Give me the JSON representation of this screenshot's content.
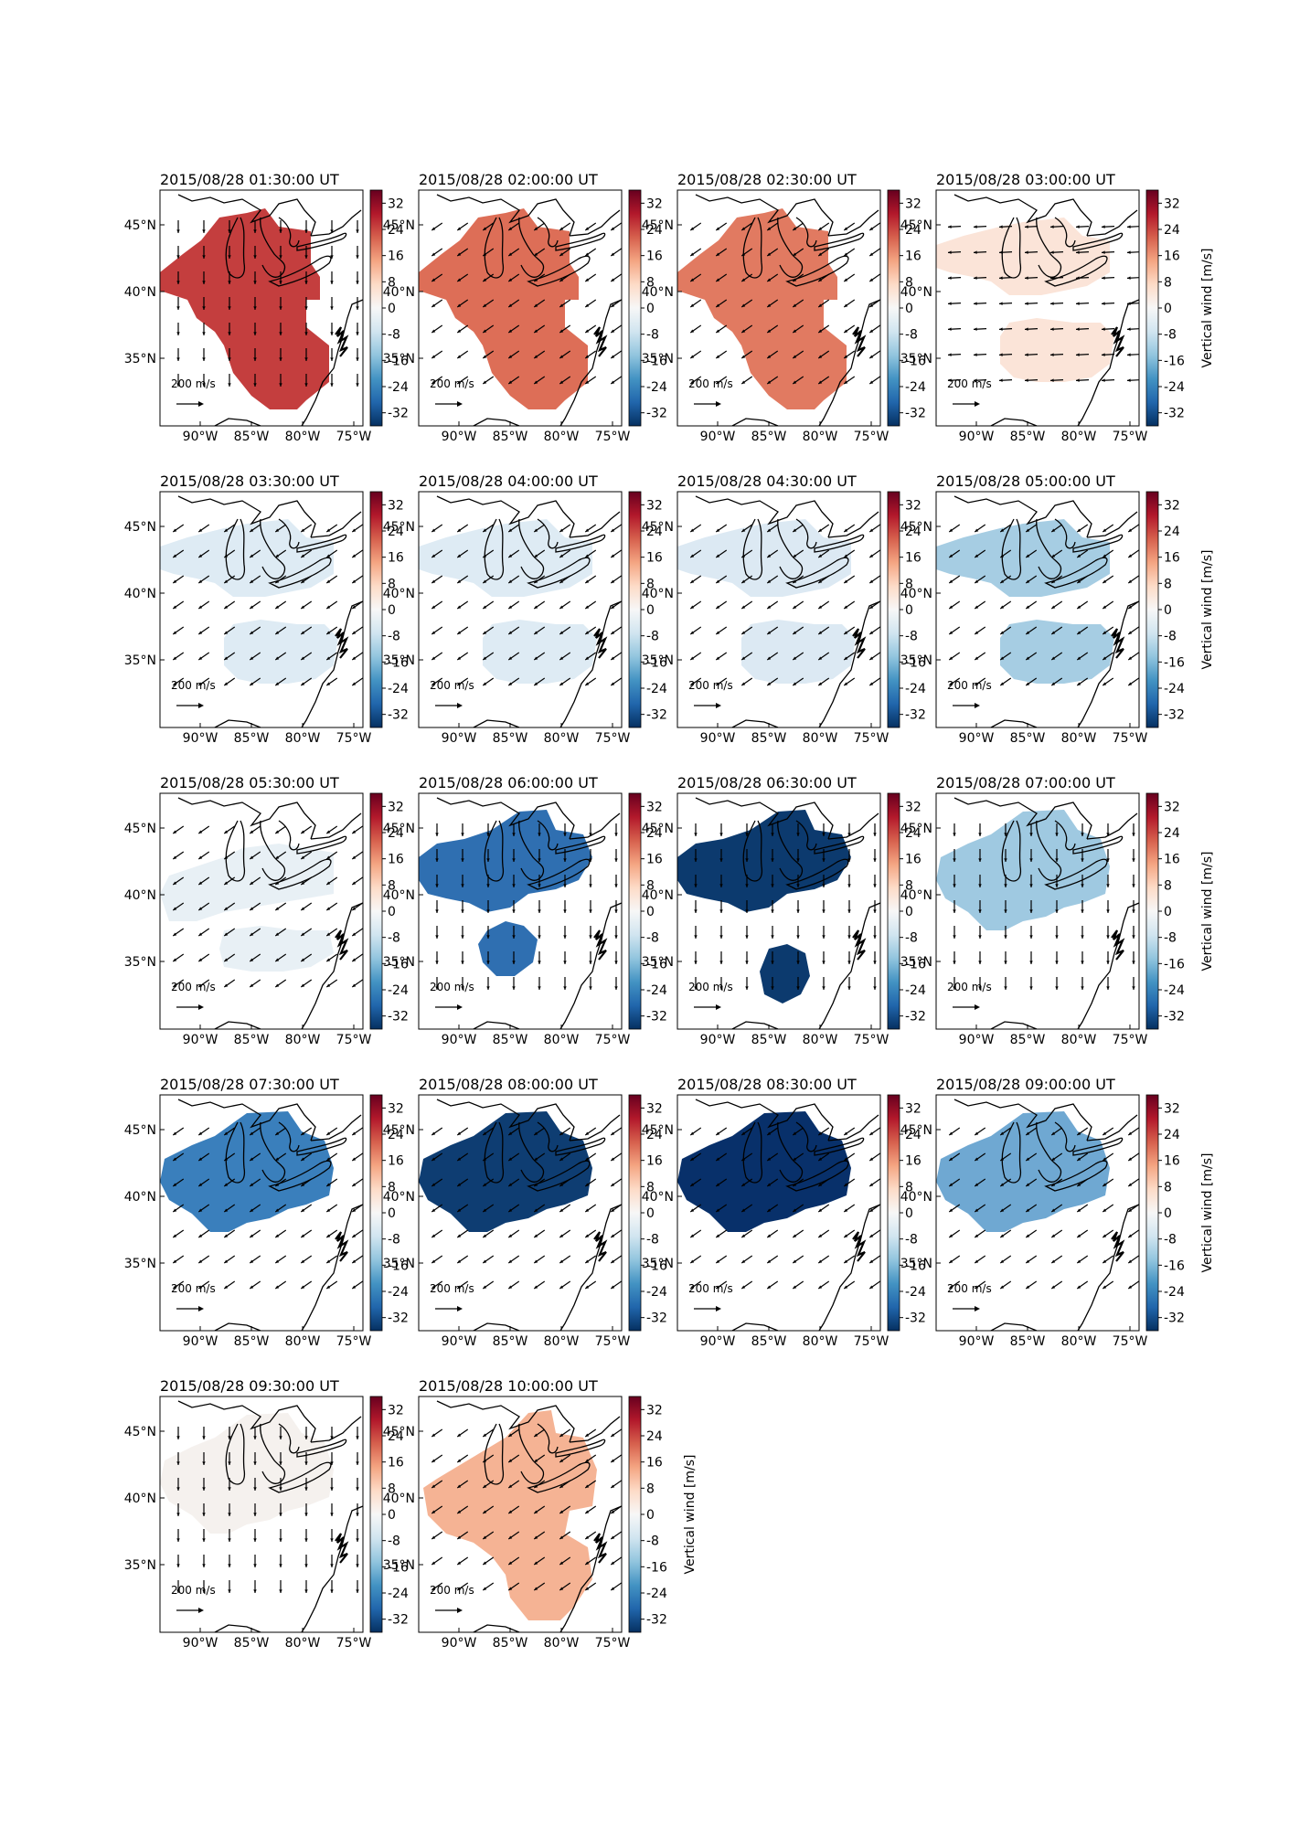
{
  "figure": {
    "lat_ticks": [
      "45°N",
      "40°N",
      "35°N"
    ],
    "lon_ticks": [
      "90°W",
      "85°W",
      "80°W",
      "75°W"
    ],
    "colorbar_ticks": [
      "32",
      "24",
      "16",
      "8",
      "0",
      "-8",
      "-16",
      "-24",
      "-32"
    ],
    "colorbar_label": "Vertical wind [m/s]",
    "reference_arrow_label": "200 m/s",
    "colorbar_colors": [
      "#67001f",
      "#b2182b",
      "#d6604d",
      "#f4a582",
      "#fddbc7",
      "#f7f7f7",
      "#d1e5f0",
      "#92c5de",
      "#4393c3",
      "#2166ac",
      "#053061"
    ]
  },
  "chart_data": [
    {
      "type": "map",
      "title": "2015/08/28 01:30:00 UT",
      "vertical_wind": 29,
      "color": "#c43e3e",
      "shape": "full",
      "wind_dir": "south"
    },
    {
      "type": "map",
      "title": "2015/08/28 02:00:00 UT",
      "vertical_wind": 18,
      "color": "#dd6e57",
      "shape": "full",
      "wind_dir": "southwest"
    },
    {
      "type": "map",
      "title": "2015/08/28 02:30:00 UT",
      "vertical_wind": 17,
      "color": "#e17a61",
      "shape": "full",
      "wind_dir": "southwest"
    },
    {
      "type": "map",
      "title": "2015/08/28 03:00:00 UT",
      "vertical_wind": 3,
      "color": "#fbe4d8",
      "shape": "split",
      "wind_dir": "west"
    },
    {
      "type": "map",
      "title": "2015/08/28 03:30:00 UT",
      "vertical_wind": -3,
      "color": "#deebf4",
      "shape": "split",
      "wind_dir": "southwest"
    },
    {
      "type": "map",
      "title": "2015/08/28 04:00:00 UT",
      "vertical_wind": -3,
      "color": "#deebf4",
      "shape": "split",
      "wind_dir": "southwest"
    },
    {
      "type": "map",
      "title": "2015/08/28 04:30:00 UT",
      "vertical_wind": -3,
      "color": "#dce9f3",
      "shape": "split",
      "wind_dir": "southwest"
    },
    {
      "type": "map",
      "title": "2015/08/28 05:00:00 UT",
      "vertical_wind": -12,
      "color": "#a6cde3",
      "shape": "split",
      "wind_dir": "southwest"
    },
    {
      "type": "map",
      "title": "2015/08/28 05:30:00 UT",
      "vertical_wind": -2,
      "color": "#e8f0f5",
      "shape": "split-small",
      "wind_dir": "southwest"
    },
    {
      "type": "map",
      "title": "2015/08/28 06:00:00 UT",
      "vertical_wind": -24,
      "color": "#2f6fb1",
      "shape": "north-blob",
      "wind_dir": "south"
    },
    {
      "type": "map",
      "title": "2015/08/28 06:30:00 UT",
      "vertical_wind": -31,
      "color": "#0c3a6e",
      "shape": "north-blob",
      "wind_dir": "south"
    },
    {
      "type": "map",
      "title": "2015/08/28 07:00:00 UT",
      "vertical_wind": -13,
      "color": "#9fc9e1",
      "shape": "north",
      "wind_dir": "south"
    },
    {
      "type": "map",
      "title": "2015/08/28 07:30:00 UT",
      "vertical_wind": -21,
      "color": "#3a7fbc",
      "shape": "north",
      "wind_dir": "southwest"
    },
    {
      "type": "map",
      "title": "2015/08/28 08:00:00 UT",
      "vertical_wind": -31,
      "color": "#0e3d72",
      "shape": "north",
      "wind_dir": "southwest"
    },
    {
      "type": "map",
      "title": "2015/08/28 08:30:00 UT",
      "vertical_wind": -33,
      "color": "#08306a",
      "shape": "north",
      "wind_dir": "southwest"
    },
    {
      "type": "map",
      "title": "2015/08/28 09:00:00 UT",
      "vertical_wind": -16,
      "color": "#6fa8d2",
      "shape": "north",
      "wind_dir": "southwest"
    },
    {
      "type": "map",
      "title": "2015/08/28 09:30:00 UT",
      "vertical_wind": 1,
      "color": "#f5f1ee",
      "shape": "north",
      "wind_dir": "south"
    },
    {
      "type": "map",
      "title": "2015/08/28 10:00:00 UT",
      "vertical_wind": 11,
      "color": "#f5b394",
      "shape": "full-east",
      "wind_dir": "southwest"
    }
  ]
}
